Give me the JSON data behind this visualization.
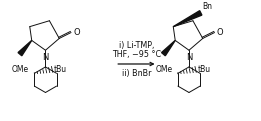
{
  "figsize": [
    2.61,
    1.21
  ],
  "dpi": 100,
  "bg_color": "#ffffff",
  "reagent_line1": "i) Li-TMP,",
  "reagent_line2": "THF, −95 °C",
  "reagent_line3": "ii) BnBr",
  "text_color": "#111111",
  "font_size_reagent": 5.8,
  "font_size_label": 5.5,
  "font_size_atom": 6.0,
  "font_size_bn": 5.5
}
